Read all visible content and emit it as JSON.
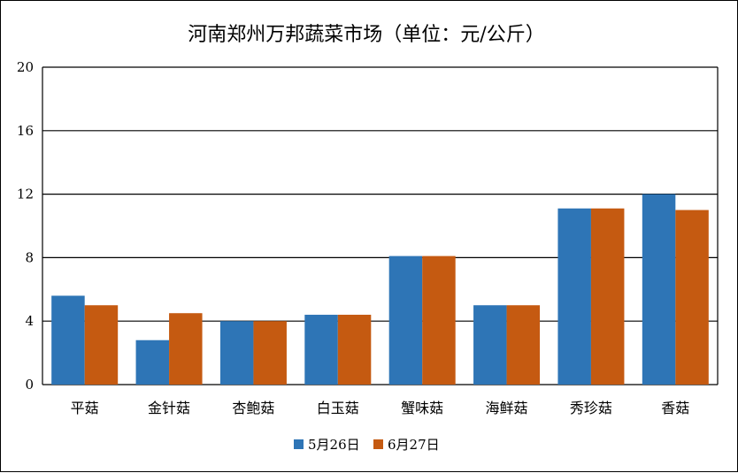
{
  "chart_data": {
    "type": "bar",
    "title": "河南郑州万邦蔬菜市场（单位：元/公斤）",
    "xlabel": "",
    "ylabel": "",
    "ylim": [
      0,
      20
    ],
    "yticks": [
      0,
      4,
      8,
      12,
      16,
      20
    ],
    "grid": true,
    "legend_position": "bottom",
    "categories": [
      "平菇",
      "金针菇",
      "杏鲍菇",
      "白玉菇",
      "蟹味菇",
      "海鲜菇",
      "秀珍菇",
      "香菇"
    ],
    "series": [
      {
        "name": "5月26日",
        "color": "#2e75b6",
        "values": [
          5.6,
          2.8,
          4.0,
          4.4,
          8.1,
          5.0,
          11.1,
          12.0
        ]
      },
      {
        "name": "6月27日",
        "color": "#c55a11",
        "values": [
          5.0,
          4.5,
          4.0,
          4.4,
          8.1,
          5.0,
          11.1,
          11.0
        ]
      }
    ]
  }
}
